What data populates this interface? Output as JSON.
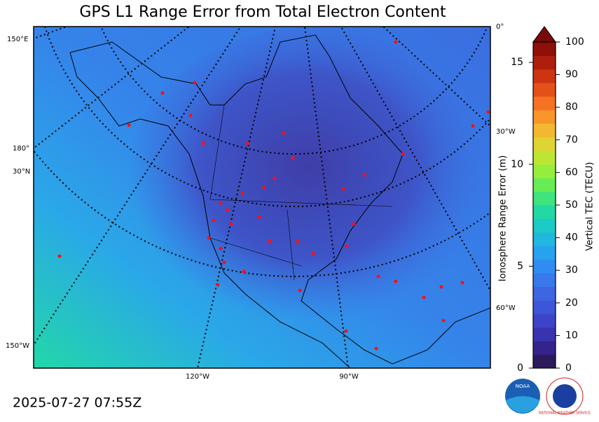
{
  "title": "GPS L1 Range Error from Total Electron Content",
  "timestamp": "2025-07-27 07:55Z",
  "map": {
    "labels": [
      "150°E",
      "180°",
      "30°N",
      "150°W",
      "0°",
      "30°W",
      "60°W",
      "120°W",
      "90°W"
    ]
  },
  "colorbar": {
    "left_label": "Ionosphere Range Error (m)",
    "left_lim": [
      0,
      16
    ],
    "left_ticks": [
      0,
      5,
      10,
      15
    ],
    "right_label": "Vertical TEC (TECU)",
    "right_lim": [
      0,
      100
    ],
    "right_ticks": [
      0,
      10,
      20,
      30,
      40,
      50,
      60,
      70,
      80,
      90,
      100
    ]
  },
  "logos": {
    "noaa": "NOAA",
    "nws": "NATIONAL WEATHER SERVICE"
  }
}
